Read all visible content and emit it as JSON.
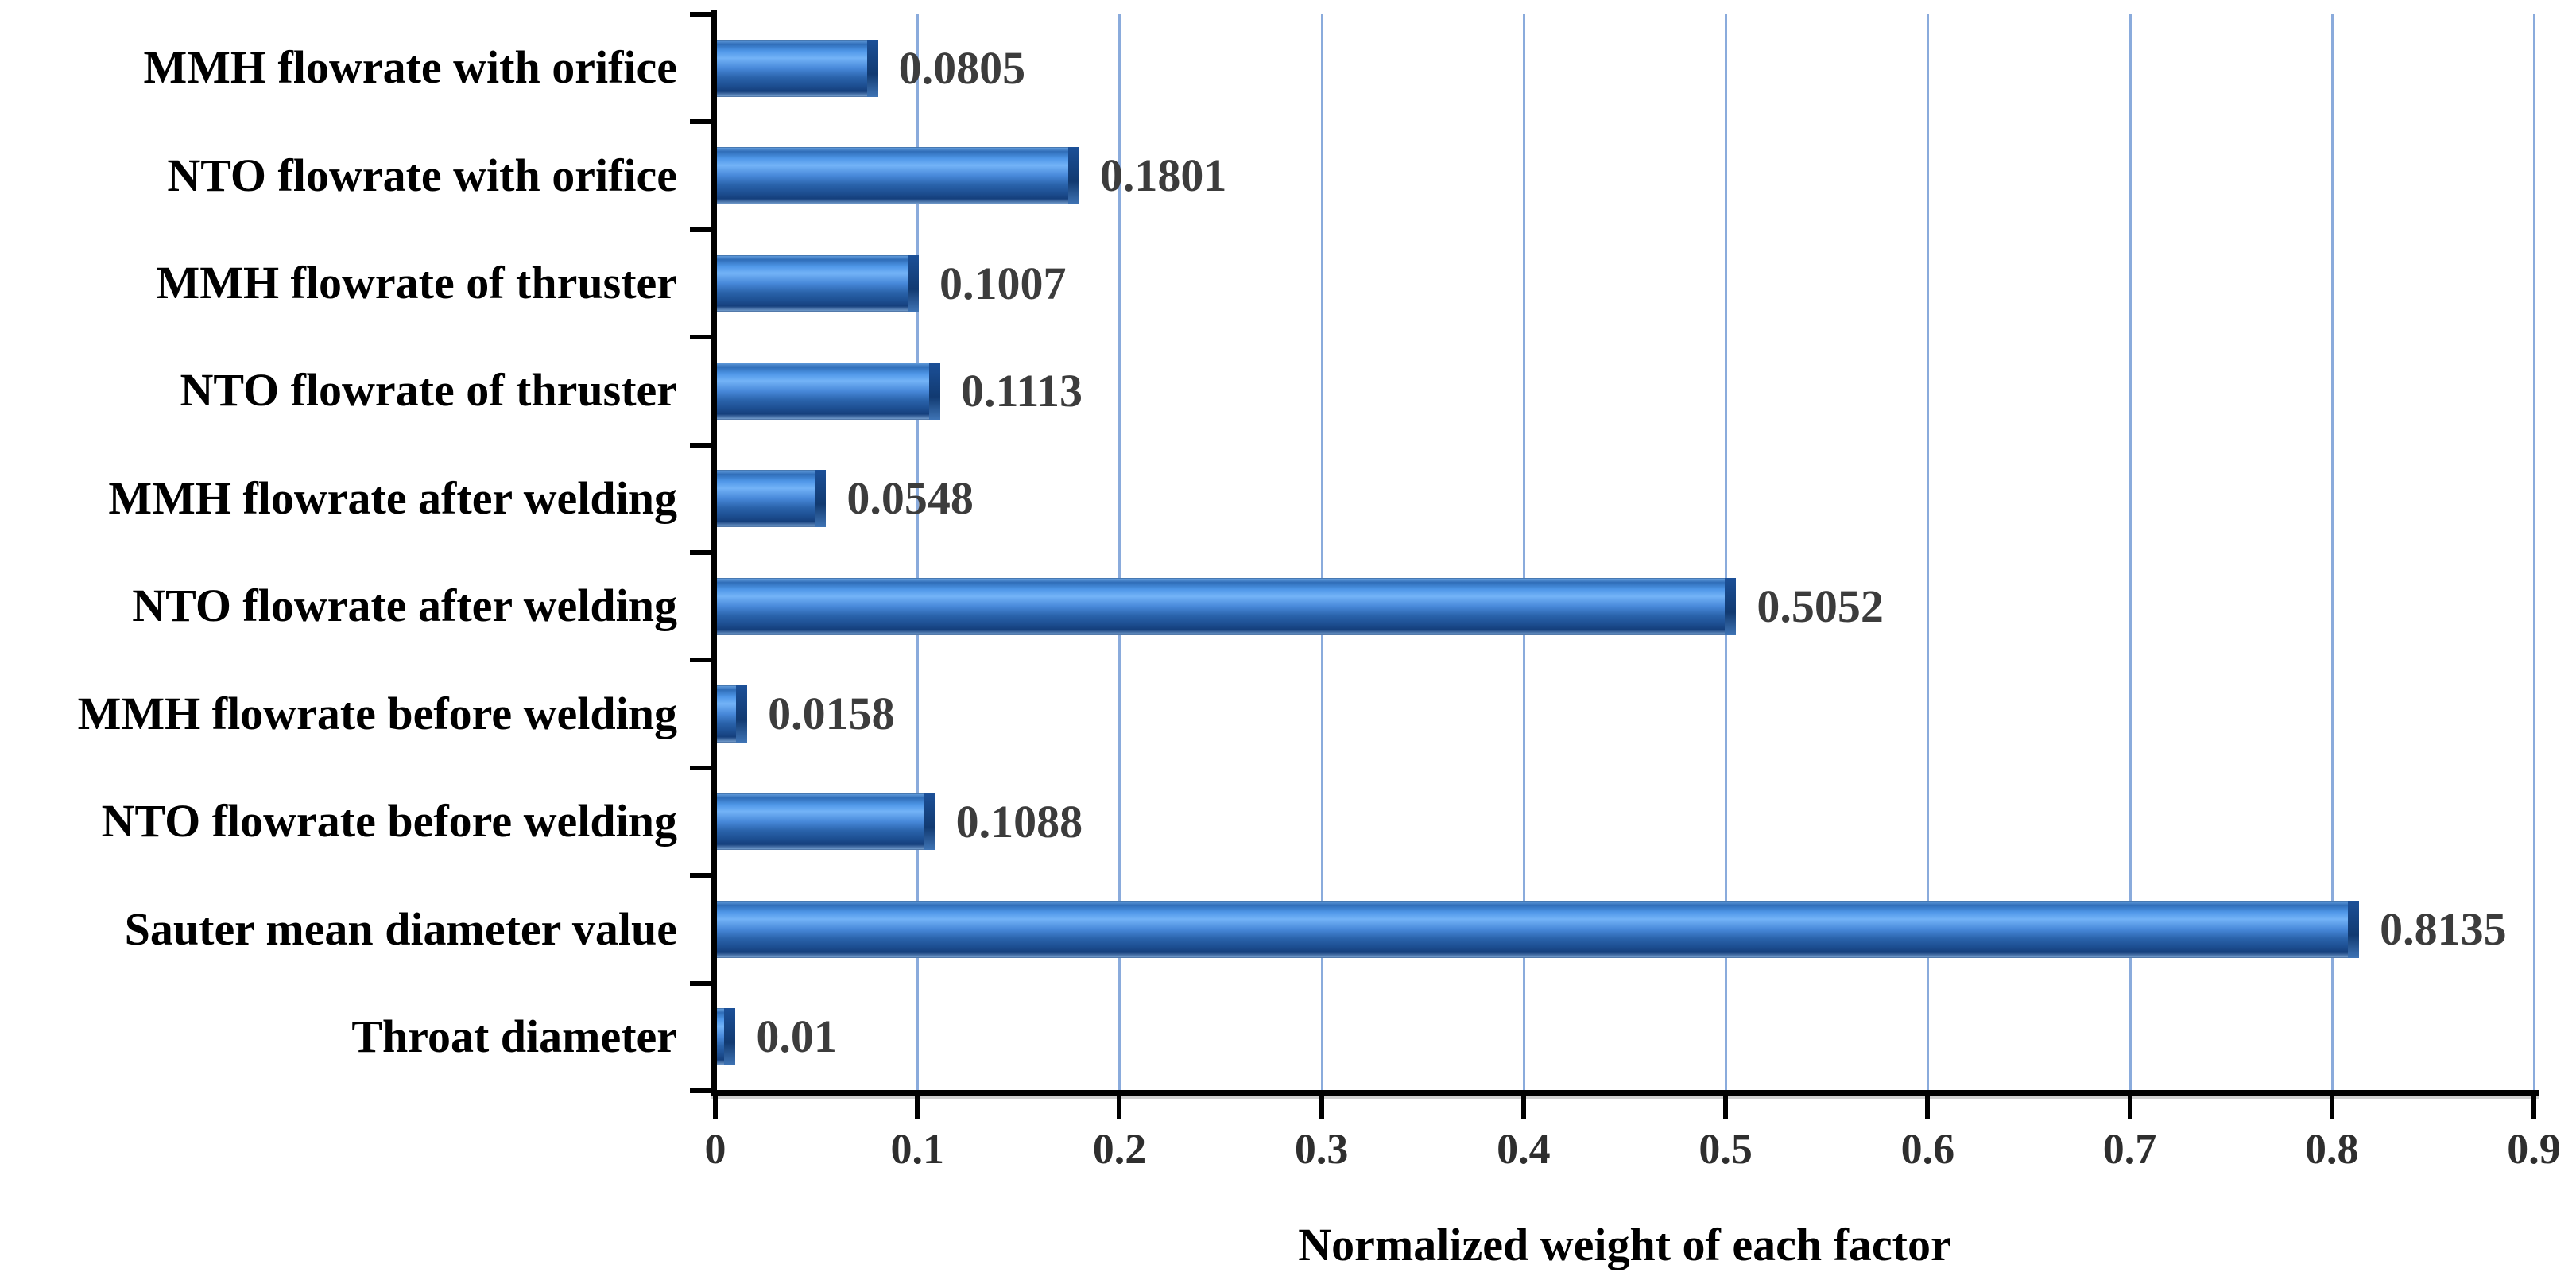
{
  "figure": {
    "background": "#ffffff"
  },
  "chart_data": {
    "type": "bar",
    "orientation": "horizontal",
    "title": "",
    "xlabel": "Normalized weight of each factor",
    "ylabel": "",
    "xlim": [
      0,
      0.9
    ],
    "xticks": [
      0,
      0.1,
      0.2,
      0.3,
      0.4,
      0.5,
      0.6,
      0.7,
      0.8,
      0.9
    ],
    "xtick_labels": [
      "0",
      "0.1",
      "0.2",
      "0.3",
      "0.4",
      "0.5",
      "0.6",
      "0.7",
      "0.8",
      "0.9"
    ],
    "grid": "vertical",
    "legend": "none",
    "categories": [
      "MMH flowrate with orifice",
      "NTO flowrate with orifice",
      "MMH flowrate of thruster",
      "NTO flowrate of thruster",
      "MMH flowrate after welding",
      "NTO flowrate after welding",
      "MMH flowrate before welding",
      "NTO flowrate before welding",
      "Sauter mean diameter value",
      "Throat diameter"
    ],
    "values": [
      0.0805,
      0.1801,
      0.1007,
      0.1113,
      0.0548,
      0.5052,
      0.0158,
      0.1088,
      0.8135,
      0.01
    ],
    "value_labels": [
      "0.0805",
      "0.1801",
      "0.1007",
      "0.1113",
      "0.0548",
      "0.5052",
      "0.0158",
      "0.1088",
      "0.8135",
      "0.01"
    ],
    "colors": {
      "bar_main": "#3b82d8",
      "bar_highlight": "#73b3f7",
      "bar_shadow": "#153f7c",
      "bar_bevel": "#113a71",
      "gridline": "#8aabdc",
      "axis": "#000000",
      "category_label": "#000000",
      "value_label": "#3c3c3c",
      "tick_label": "#2e2e2e"
    }
  }
}
